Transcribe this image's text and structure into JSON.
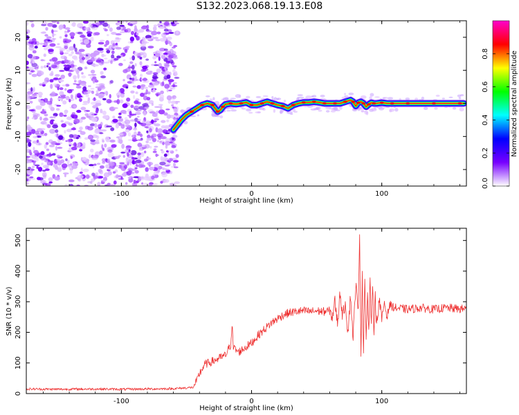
{
  "title": "S132.2023.068.19.13.E08",
  "chart_data": [
    {
      "type": "heatmap",
      "name": "spectrogram",
      "xlabel": "Height of straight line (km)",
      "ylabel": "Frequency (Hz)",
      "xlim": [
        -173,
        165
      ],
      "ylim": [
        -25,
        25
      ],
      "x_ticks": [
        -100,
        0,
        100
      ],
      "y_ticks": [
        -20,
        -10,
        0,
        10,
        20
      ],
      "noise_region_x": [
        -173,
        -57
      ],
      "ridge": {
        "x": [
          -60,
          -57,
          -54,
          -50,
          -46,
          -42,
          -38,
          -34,
          -30,
          -28,
          -26,
          -24,
          -22,
          -20,
          -16,
          -12,
          -8,
          -4,
          0,
          4,
          8,
          12,
          16,
          20,
          24,
          28,
          32,
          36,
          40,
          44,
          48,
          52,
          56,
          60,
          64,
          68,
          72,
          76,
          78,
          80,
          82,
          84,
          86,
          88,
          90,
          92,
          94,
          96,
          100,
          104,
          108,
          112,
          120,
          130,
          140,
          150,
          160,
          163
        ],
        "y": [
          -8,
          -6.5,
          -5,
          -3.5,
          -2.5,
          -1.5,
          -0.5,
          0,
          -0.5,
          -1.5,
          -2.5,
          -2,
          -1,
          -0.3,
          0,
          -0.2,
          0,
          0.3,
          -0.5,
          -0.5,
          0,
          0.5,
          0,
          -0.5,
          -0.8,
          -1.5,
          -0.5,
          0,
          0.3,
          0.3,
          0.5,
          0.3,
          0,
          0,
          0,
          0,
          0.5,
          1.0,
          0.5,
          -0.8,
          0.2,
          0.5,
          0,
          -1.0,
          -0.3,
          0.2,
          0,
          0,
          0.2,
          0,
          0,
          0,
          0,
          0,
          0,
          0,
          0,
          0
        ]
      },
      "colorbar": {
        "label": "Normalized spectral amplitude",
        "range": [
          0,
          1
        ],
        "ticks": [
          "0.0",
          "0.2",
          "0.4",
          "0.6",
          "0.8"
        ],
        "colors": [
          "#ffffff",
          "#7700ff",
          "#0000ff",
          "#00ffff",
          "#00ff00",
          "#ffff00",
          "#ff0000",
          "#ff00cc"
        ]
      }
    },
    {
      "type": "line",
      "name": "snr",
      "xlabel": "Height of straight line (km)",
      "ylabel": "SNR (10 * v/v)",
      "xlim": [
        -173,
        165
      ],
      "ylim": [
        0,
        540
      ],
      "x_ticks": [
        -100,
        0,
        100
      ],
      "y_ticks": [
        0,
        100,
        200,
        300,
        400,
        500
      ],
      "color": "#ee3030",
      "series": [
        {
          "x": [
            -173,
            -150,
            -120,
            -100,
            -80,
            -60,
            -45,
            -42,
            -40,
            -36,
            -30,
            -25,
            -20,
            -16,
            -15,
            -14,
            -10,
            -5,
            0,
            5,
            10,
            15,
            20,
            25,
            30,
            35,
            40,
            45,
            50,
            55,
            60,
            62,
            64,
            66,
            68,
            70,
            72,
            74,
            76,
            78,
            80,
            82,
            83,
            84,
            85,
            86,
            87,
            88,
            89,
            90,
            91,
            92,
            93,
            94,
            95,
            96,
            98,
            100,
            102,
            104,
            106,
            110,
            120,
            130,
            140,
            150,
            160,
            165
          ],
          "y": [
            15,
            14,
            15,
            14,
            15,
            16,
            20,
            40,
            65,
            95,
            105,
            115,
            125,
            160,
            230,
            150,
            135,
            150,
            165,
            190,
            210,
            230,
            245,
            258,
            265,
            268,
            270,
            268,
            270,
            268,
            270,
            250,
            300,
            230,
            330,
            250,
            300,
            200,
            320,
            180,
            360,
            260,
            540,
            130,
            380,
            140,
            390,
            170,
            330,
            200,
            360,
            230,
            340,
            210,
            330,
            220,
            310,
            240,
            300,
            250,
            290,
            280,
            275,
            280,
            275,
            280,
            276,
            278
          ]
        }
      ]
    }
  ]
}
